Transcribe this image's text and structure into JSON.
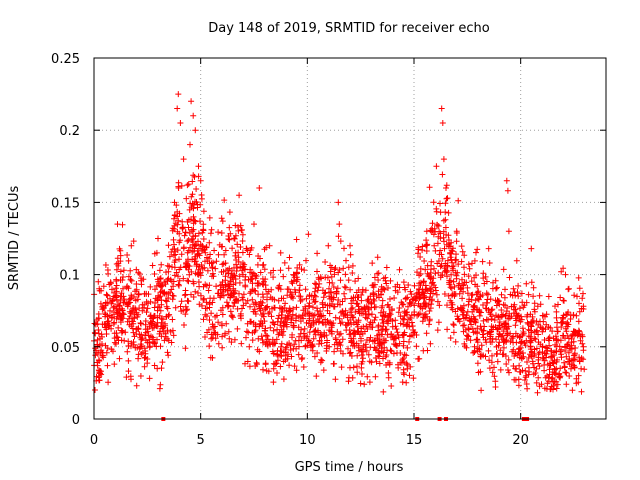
{
  "chart_data": {
    "type": "scatter",
    "title": "Day 148 of 2019, SRMTID for receiver echo",
    "xlabel": "GPS time / hours",
    "ylabel": "SRMTID / TECUs",
    "xlim": [
      0,
      24
    ],
    "ylim": [
      0,
      0.25
    ],
    "x_ticks": [
      0,
      5,
      10,
      15,
      20
    ],
    "x_tick_labels": [
      "0",
      "5",
      "10",
      "15",
      "20"
    ],
    "y_ticks": [
      0,
      0.05,
      0.1,
      0.15,
      0.2,
      0.25
    ],
    "y_tick_labels": [
      "0",
      "0.05",
      "0.1",
      "0.15",
      "0.2",
      "0.25"
    ],
    "grid": true,
    "marker": "+",
    "series": [
      {
        "name": "SRMTID",
        "color": "#ff0000",
        "trend": [
          [
            0.0,
            0.055
          ],
          [
            0.5,
            0.06
          ],
          [
            1.0,
            0.075
          ],
          [
            1.5,
            0.078
          ],
          [
            2.0,
            0.072
          ],
          [
            2.5,
            0.062
          ],
          [
            3.0,
            0.068
          ],
          [
            3.5,
            0.085
          ],
          [
            3.9,
            0.125
          ],
          [
            4.2,
            0.105
          ],
          [
            4.7,
            0.13
          ],
          [
            5.0,
            0.115
          ],
          [
            5.5,
            0.082
          ],
          [
            6.0,
            0.09
          ],
          [
            6.5,
            0.1
          ],
          [
            7.0,
            0.092
          ],
          [
            7.5,
            0.075
          ],
          [
            8.0,
            0.07
          ],
          [
            8.5,
            0.058
          ],
          [
            9.0,
            0.068
          ],
          [
            9.5,
            0.078
          ],
          [
            10.0,
            0.065
          ],
          [
            10.5,
            0.07
          ],
          [
            11.0,
            0.075
          ],
          [
            11.5,
            0.072
          ],
          [
            12.0,
            0.068
          ],
          [
            12.5,
            0.062
          ],
          [
            13.0,
            0.07
          ],
          [
            13.5,
            0.062
          ],
          [
            14.0,
            0.065
          ],
          [
            14.5,
            0.062
          ],
          [
            15.0,
            0.07
          ],
          [
            15.5,
            0.09
          ],
          [
            16.0,
            0.11
          ],
          [
            16.4,
            0.12
          ],
          [
            16.8,
            0.095
          ],
          [
            17.2,
            0.085
          ],
          [
            17.5,
            0.075
          ],
          [
            18.0,
            0.07
          ],
          [
            18.5,
            0.065
          ],
          [
            19.0,
            0.062
          ],
          [
            19.5,
            0.068
          ],
          [
            20.0,
            0.055
          ],
          [
            20.5,
            0.058
          ],
          [
            21.0,
            0.048
          ],
          [
            21.5,
            0.042
          ],
          [
            22.0,
            0.06
          ],
          [
            22.5,
            0.055
          ],
          [
            23.0,
            0.06
          ]
        ],
        "spikes": [
          [
            3.95,
            0.225
          ],
          [
            3.9,
            0.215
          ],
          [
            4.05,
            0.205
          ],
          [
            4.55,
            0.22
          ],
          [
            4.65,
            0.21
          ],
          [
            4.75,
            0.2
          ],
          [
            4.5,
            0.19
          ],
          [
            4.9,
            0.175
          ],
          [
            5.0,
            0.165
          ],
          [
            4.2,
            0.18
          ],
          [
            6.8,
            0.155
          ],
          [
            7.5,
            0.135
          ],
          [
            7.75,
            0.16
          ],
          [
            11.45,
            0.15
          ],
          [
            11.5,
            0.135
          ],
          [
            16.3,
            0.215
          ],
          [
            16.35,
            0.205
          ],
          [
            16.4,
            0.18
          ],
          [
            16.05,
            0.175
          ],
          [
            15.6,
            0.13
          ],
          [
            16.5,
            0.16
          ],
          [
            17.0,
            0.13
          ],
          [
            19.35,
            0.165
          ],
          [
            19.4,
            0.158
          ],
          [
            19.45,
            0.13
          ],
          [
            1.1,
            0.135
          ],
          [
            1.75,
            0.12
          ],
          [
            3.0,
            0.125
          ],
          [
            2.95,
            0.115
          ],
          [
            10.05,
            0.128
          ],
          [
            12.0,
            0.12
          ],
          [
            13.3,
            0.112
          ],
          [
            8.75,
            0.115
          ],
          [
            18.5,
            0.118
          ],
          [
            18.55,
            0.108
          ],
          [
            22.1,
            0.1
          ],
          [
            20.5,
            0.118
          ],
          [
            21.9,
            0.102
          ],
          [
            0.2,
            0.095
          ],
          [
            9.35,
            0.1
          ]
        ],
        "point_count": 2700,
        "spread": 0.022,
        "floor": 0.018
      }
    ],
    "baseline_markers_x": [
      3.25,
      15.15,
      16.2,
      16.5,
      20.15,
      20.3
    ]
  }
}
